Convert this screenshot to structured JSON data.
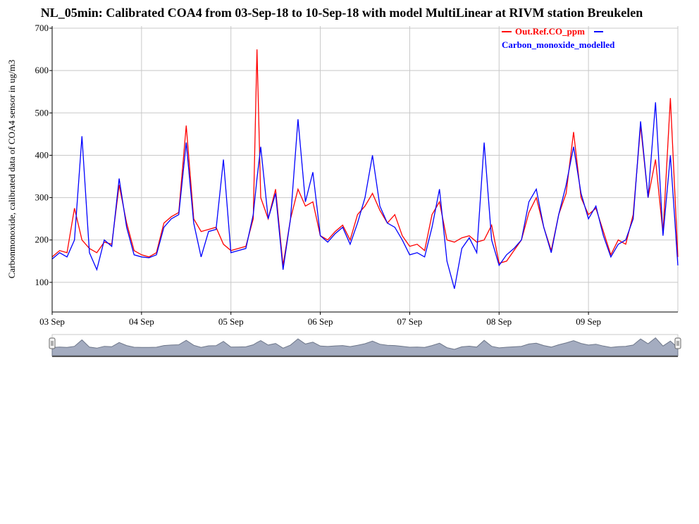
{
  "chart_data": {
    "type": "line",
    "title": "NL_05min: Calibrated COA4 from 03-Sep-18 to 10-Sep-18 with model MultiLinear at RIVM station Breukelen",
    "ylabel": "Carbonmonoxide, calibrated data of COA4 sensor in ug/m3",
    "xlabel": "",
    "ylim": [
      30,
      705
    ],
    "yticks": [
      100,
      200,
      300,
      400,
      500,
      600,
      700
    ],
    "xlim": [
      "2018-09-03T00:00",
      "2018-09-10T00:00"
    ],
    "xticks": [
      {
        "x": "2018-09-03T00:00",
        "label": "03 Sep"
      },
      {
        "x": "2018-09-04T00:00",
        "label": "04 Sep"
      },
      {
        "x": "2018-09-05T00:00",
        "label": "05 Sep"
      },
      {
        "x": "2018-09-06T00:00",
        "label": "06 Sep"
      },
      {
        "x": "2018-09-07T00:00",
        "label": "07 Sep"
      },
      {
        "x": "2018-09-08T00:00",
        "label": "08 Sep"
      },
      {
        "x": "2018-09-09T00:00",
        "label": "09 Sep"
      }
    ],
    "grid": true,
    "legend": "top-right",
    "series": [
      {
        "name": "Out.Ref.CO_ppm",
        "color": "#ff0000",
        "x": [
          "2018-09-03T00:00",
          "2018-09-03T02:00",
          "2018-09-03T04:00",
          "2018-09-03T06:00",
          "2018-09-03T08:00",
          "2018-09-03T10:00",
          "2018-09-03T12:00",
          "2018-09-03T14:00",
          "2018-09-03T16:00",
          "2018-09-03T18:00",
          "2018-09-03T20:00",
          "2018-09-03T22:00",
          "2018-09-04T00:00",
          "2018-09-04T02:00",
          "2018-09-04T04:00",
          "2018-09-04T06:00",
          "2018-09-04T08:00",
          "2018-09-04T10:00",
          "2018-09-04T12:00",
          "2018-09-04T14:00",
          "2018-09-04T16:00",
          "2018-09-04T18:00",
          "2018-09-04T20:00",
          "2018-09-04T22:00",
          "2018-09-05T00:00",
          "2018-09-05T02:00",
          "2018-09-05T04:00",
          "2018-09-05T06:00",
          "2018-09-05T07:00",
          "2018-09-05T08:00",
          "2018-09-05T10:00",
          "2018-09-05T12:00",
          "2018-09-05T14:00",
          "2018-09-05T16:00",
          "2018-09-05T18:00",
          "2018-09-05T20:00",
          "2018-09-05T22:00",
          "2018-09-06T00:00",
          "2018-09-06T02:00",
          "2018-09-06T04:00",
          "2018-09-06T06:00",
          "2018-09-06T08:00",
          "2018-09-06T10:00",
          "2018-09-06T12:00",
          "2018-09-06T14:00",
          "2018-09-06T16:00",
          "2018-09-06T18:00",
          "2018-09-06T20:00",
          "2018-09-06T22:00",
          "2018-09-07T00:00",
          "2018-09-07T02:00",
          "2018-09-07T04:00",
          "2018-09-07T06:00",
          "2018-09-07T08:00",
          "2018-09-07T10:00",
          "2018-09-07T12:00",
          "2018-09-07T14:00",
          "2018-09-07T16:00",
          "2018-09-07T18:00",
          "2018-09-07T20:00",
          "2018-09-07T22:00",
          "2018-09-08T00:00",
          "2018-09-08T02:00",
          "2018-09-08T04:00",
          "2018-09-08T06:00",
          "2018-09-08T08:00",
          "2018-09-08T10:00",
          "2018-09-08T12:00",
          "2018-09-08T14:00",
          "2018-09-08T16:00",
          "2018-09-08T18:00",
          "2018-09-08T20:00",
          "2018-09-08T22:00",
          "2018-09-09T00:00",
          "2018-09-09T02:00",
          "2018-09-09T04:00",
          "2018-09-09T06:00",
          "2018-09-09T08:00",
          "2018-09-09T10:00",
          "2018-09-09T12:00",
          "2018-09-09T14:00",
          "2018-09-09T16:00",
          "2018-09-09T18:00",
          "2018-09-09T20:00",
          "2018-09-09T22:00",
          "2018-09-10T00:00"
        ],
        "values": [
          160,
          175,
          170,
          275,
          200,
          180,
          170,
          195,
          190,
          330,
          240,
          175,
          165,
          160,
          170,
          240,
          255,
          265,
          470,
          250,
          220,
          225,
          230,
          190,
          175,
          180,
          185,
          250,
          650,
          300,
          250,
          320,
          140,
          250,
          320,
          280,
          290,
          210,
          200,
          220,
          235,
          200,
          260,
          280,
          310,
          270,
          240,
          260,
          210,
          185,
          190,
          175,
          260,
          290,
          200,
          195,
          205,
          210,
          195,
          200,
          235,
          145,
          150,
          175,
          200,
          265,
          300,
          230,
          175,
          260,
          310,
          455,
          300,
          260,
          275,
          220,
          165,
          200,
          190,
          260,
          470,
          300,
          390,
          215,
          535,
          160
        ]
      },
      {
        "name": "Carbon_monoxide_modelled",
        "color": "#0000ff",
        "x": [
          "2018-09-03T00:00",
          "2018-09-03T02:00",
          "2018-09-03T04:00",
          "2018-09-03T06:00",
          "2018-09-03T08:00",
          "2018-09-03T10:00",
          "2018-09-03T12:00",
          "2018-09-03T14:00",
          "2018-09-03T16:00",
          "2018-09-03T18:00",
          "2018-09-03T20:00",
          "2018-09-03T22:00",
          "2018-09-04T00:00",
          "2018-09-04T02:00",
          "2018-09-04T04:00",
          "2018-09-04T06:00",
          "2018-09-04T08:00",
          "2018-09-04T10:00",
          "2018-09-04T12:00",
          "2018-09-04T14:00",
          "2018-09-04T16:00",
          "2018-09-04T18:00",
          "2018-09-04T20:00",
          "2018-09-04T22:00",
          "2018-09-05T00:00",
          "2018-09-05T02:00",
          "2018-09-05T04:00",
          "2018-09-05T06:00",
          "2018-09-05T07:00",
          "2018-09-05T08:00",
          "2018-09-05T10:00",
          "2018-09-05T12:00",
          "2018-09-05T14:00",
          "2018-09-05T16:00",
          "2018-09-05T18:00",
          "2018-09-05T20:00",
          "2018-09-05T22:00",
          "2018-09-06T00:00",
          "2018-09-06T02:00",
          "2018-09-06T04:00",
          "2018-09-06T06:00",
          "2018-09-06T08:00",
          "2018-09-06T10:00",
          "2018-09-06T12:00",
          "2018-09-06T14:00",
          "2018-09-06T16:00",
          "2018-09-06T18:00",
          "2018-09-06T20:00",
          "2018-09-06T22:00",
          "2018-09-07T00:00",
          "2018-09-07T02:00",
          "2018-09-07T04:00",
          "2018-09-07T06:00",
          "2018-09-07T08:00",
          "2018-09-07T10:00",
          "2018-09-07T12:00",
          "2018-09-07T14:00",
          "2018-09-07T16:00",
          "2018-09-07T18:00",
          "2018-09-07T20:00",
          "2018-09-07T22:00",
          "2018-09-08T00:00",
          "2018-09-08T02:00",
          "2018-09-08T04:00",
          "2018-09-08T06:00",
          "2018-09-08T08:00",
          "2018-09-08T10:00",
          "2018-09-08T12:00",
          "2018-09-08T14:00",
          "2018-09-08T16:00",
          "2018-09-08T18:00",
          "2018-09-08T20:00",
          "2018-09-08T22:00",
          "2018-09-09T00:00",
          "2018-09-09T02:00",
          "2018-09-09T04:00",
          "2018-09-09T06:00",
          "2018-09-09T08:00",
          "2018-09-09T10:00",
          "2018-09-09T12:00",
          "2018-09-09T14:00",
          "2018-09-09T16:00",
          "2018-09-09T18:00",
          "2018-09-09T20:00",
          "2018-09-09T22:00",
          "2018-09-10T00:00"
        ],
        "values": [
          155,
          170,
          160,
          200,
          445,
          170,
          130,
          200,
          185,
          345,
          230,
          165,
          160,
          158,
          165,
          230,
          250,
          260,
          430,
          240,
          160,
          220,
          225,
          390,
          170,
          175,
          180,
          260,
          345,
          420,
          250,
          310,
          130,
          250,
          485,
          290,
          360,
          210,
          195,
          215,
          230,
          190,
          240,
          300,
          400,
          280,
          240,
          230,
          200,
          165,
          170,
          160,
          230,
          320,
          150,
          85,
          180,
          205,
          170,
          430,
          200,
          140,
          165,
          180,
          200,
          290,
          320,
          230,
          170,
          260,
          330,
          420,
          310,
          250,
          280,
          210,
          160,
          190,
          200,
          250,
          480,
          300,
          525,
          210,
          400,
          140
        ]
      }
    ]
  },
  "navigator": {
    "left_handle_icon": "grip-icon",
    "right_handle_icon": "grip-icon"
  }
}
